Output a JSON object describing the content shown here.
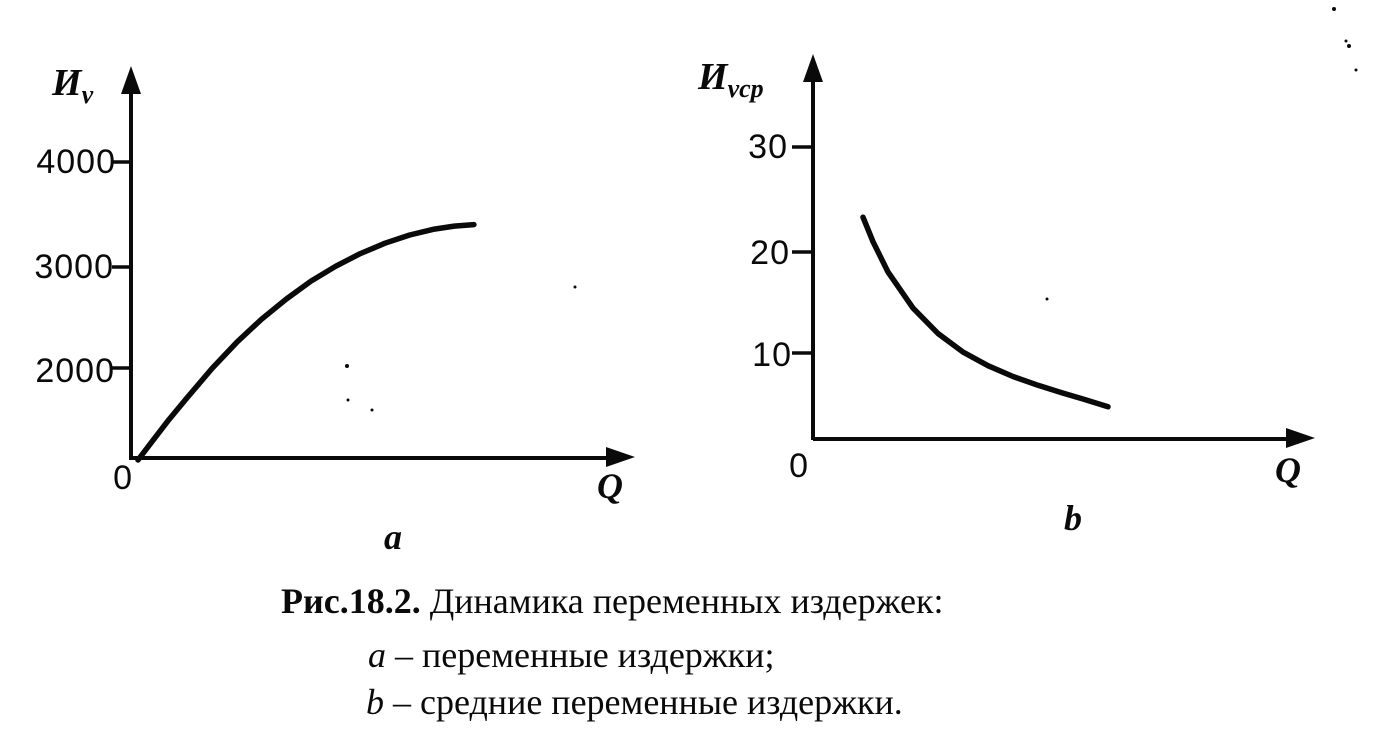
{
  "panel_a": {
    "axis_label_y_base": "И",
    "axis_label_y_sub": "v",
    "axis_label_x": "Q",
    "tick_labels": [
      "4000",
      "3000",
      "2000"
    ],
    "origin_label": "0",
    "panel_letter": "a"
  },
  "panel_b": {
    "axis_label_y_base": "И",
    "axis_label_y_sub": "vср",
    "axis_label_x": "Q",
    "tick_labels": [
      "30",
      "20",
      "10"
    ],
    "origin_label": "0",
    "panel_letter": "b"
  },
  "caption": {
    "heading": "Рис.18.2.",
    "title_rest": " Динамика переменных издержек:",
    "item_a_letter": "a",
    "item_a_text": " – переменные издержки;",
    "item_b_letter": "b",
    "item_b_text": " – средние переменные издержки."
  },
  "chart_data": [
    {
      "type": "line",
      "panel": "a",
      "title": "",
      "xlabel": "Q",
      "ylabel": "Иv",
      "yticks": [
        0,
        2000,
        3000,
        4000
      ],
      "ylim": [
        0,
        4600
      ],
      "xlim": [
        0,
        10
      ],
      "grid": false,
      "legend": false,
      "series": [
        {
          "name": "Иv (переменные издержки)",
          "points": [
            [
              0,
              0
            ],
            [
              0.3,
              260
            ],
            [
              0.6,
              520
            ],
            [
              1,
              840
            ],
            [
              1.5,
              1230
            ],
            [
              2,
              1580
            ],
            [
              2.5,
              1890
            ],
            [
              3,
              2160
            ],
            [
              3.5,
              2400
            ],
            [
              4,
              2600
            ],
            [
              4.5,
              2770
            ],
            [
              5,
              2910
            ],
            [
              5.5,
              3020
            ],
            [
              6,
              3100
            ],
            [
              6.4,
              3140
            ],
            [
              6.8,
              3160
            ]
          ]
        }
      ]
    },
    {
      "type": "line",
      "panel": "b",
      "title": "",
      "xlabel": "Q",
      "ylabel": "Иvср",
      "yticks": [
        0,
        10,
        20,
        30
      ],
      "ylim": [
        0,
        33
      ],
      "xlim": [
        0,
        10
      ],
      "grid": false,
      "legend": false,
      "series": [
        {
          "name": "Иvср (средние переменные издержки)",
          "points": [
            [
              1,
              22.8
            ],
            [
              1.2,
              20.3
            ],
            [
              1.5,
              17.2
            ],
            [
              2,
              13.5
            ],
            [
              2.5,
              10.9
            ],
            [
              3,
              9.0
            ],
            [
              3.5,
              7.6
            ],
            [
              4,
              6.5
            ],
            [
              4.5,
              5.6
            ],
            [
              5,
              4.8
            ],
            [
              5.4,
              4.2
            ],
            [
              5.9,
              3.4
            ]
          ]
        }
      ]
    }
  ]
}
